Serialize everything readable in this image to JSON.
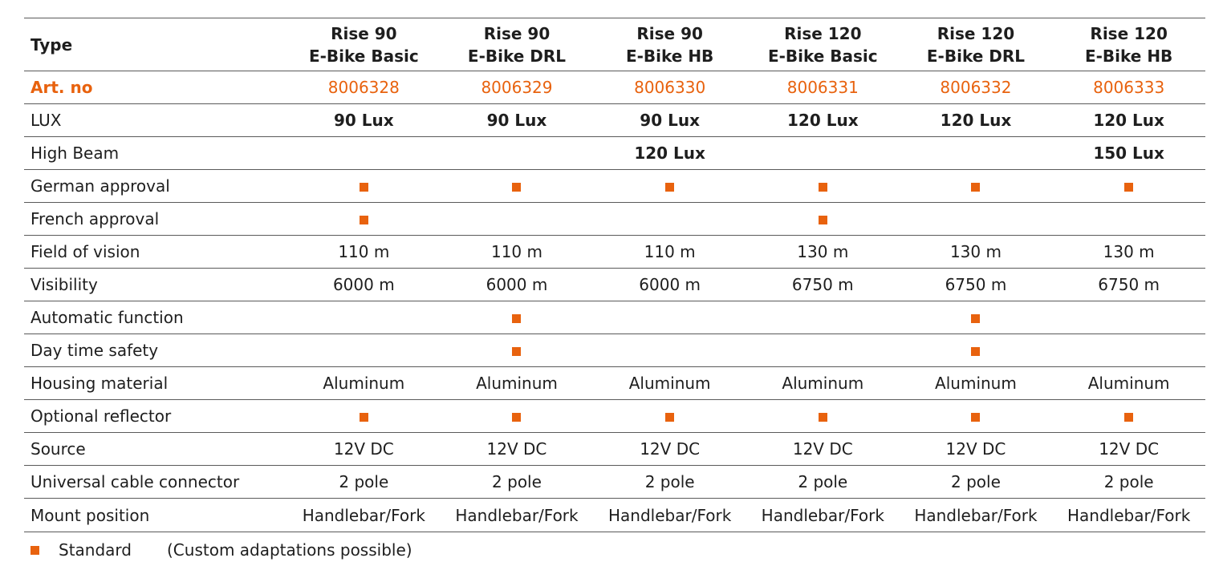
{
  "table": {
    "header": {
      "label": "Type",
      "columns": [
        {
          "line1": "Rise 90",
          "line2": "E-Bike Basic"
        },
        {
          "line1": "Rise 90",
          "line2": "E-Bike DRL"
        },
        {
          "line1": "Rise 90",
          "line2": "E-Bike HB"
        },
        {
          "line1": "Rise 120",
          "line2": "E-Bike Basic"
        },
        {
          "line1": "Rise 120",
          "line2": "E-Bike DRL"
        },
        {
          "line1": "Rise 120",
          "line2": "E-Bike HB"
        }
      ]
    },
    "rows": [
      {
        "label": "Art. no",
        "style": "accent",
        "cells": [
          "8006328",
          "8006329",
          "8006330",
          "8006331",
          "8006332",
          "8006333"
        ]
      },
      {
        "label": "LUX",
        "style": "bold",
        "cells": [
          "90 Lux",
          "90 Lux",
          "90 Lux",
          "120 Lux",
          "120 Lux",
          "120 Lux"
        ]
      },
      {
        "label": "High Beam",
        "style": "bold",
        "cells": [
          "",
          "",
          "120 Lux",
          "",
          "",
          "150 Lux"
        ]
      },
      {
        "label": "German approval",
        "style": "normal",
        "marks": [
          true,
          true,
          true,
          true,
          true,
          true
        ]
      },
      {
        "label": "French approval",
        "style": "normal",
        "marks": [
          true,
          false,
          false,
          true,
          false,
          false
        ]
      },
      {
        "label": "Field of vision",
        "style": "normal",
        "cells": [
          "110 m",
          "110 m",
          "110 m",
          "130 m",
          "130 m",
          "130 m"
        ]
      },
      {
        "label": "Visibility",
        "style": "normal",
        "cells": [
          "6000 m",
          "6000 m",
          "6000 m",
          "6750 m",
          "6750 m",
          "6750 m"
        ]
      },
      {
        "label": "Automatic function",
        "style": "normal",
        "marks": [
          false,
          true,
          false,
          false,
          true,
          false
        ]
      },
      {
        "label": "Day time safety",
        "style": "normal",
        "marks": [
          false,
          true,
          false,
          false,
          true,
          false
        ]
      },
      {
        "label": "Housing material",
        "style": "normal",
        "cells": [
          "Aluminum",
          "Aluminum",
          "Aluminum",
          "Aluminum",
          "Aluminum",
          "Aluminum"
        ]
      },
      {
        "label": "Optional reflector",
        "style": "normal",
        "marks": [
          true,
          true,
          true,
          true,
          true,
          true
        ]
      },
      {
        "label": "Source",
        "style": "normal",
        "cells": [
          "12V DC",
          "12V DC",
          "12V DC",
          "12V DC",
          "12V DC",
          "12V DC"
        ]
      },
      {
        "label": "Universal cable connector",
        "style": "normal",
        "cells": [
          "2 pole",
          "2 pole",
          "2 pole",
          "2 pole",
          "2 pole",
          "2 pole"
        ]
      },
      {
        "label": "Mount position",
        "style": "normal",
        "cells": [
          "Handlebar/Fork",
          "Handlebar/Fork",
          "Handlebar/Fork",
          "Handlebar/Fork",
          "Handlebar/Fork",
          "Handlebar/Fork"
        ]
      }
    ]
  },
  "legend": {
    "icon": "orange-square-icon",
    "standard_label": "Standard",
    "note": "(Custom adaptations possible)"
  },
  "colors": {
    "accent": "#e8620e",
    "text": "#1e1e1e",
    "rule": "#5a5a5a"
  }
}
